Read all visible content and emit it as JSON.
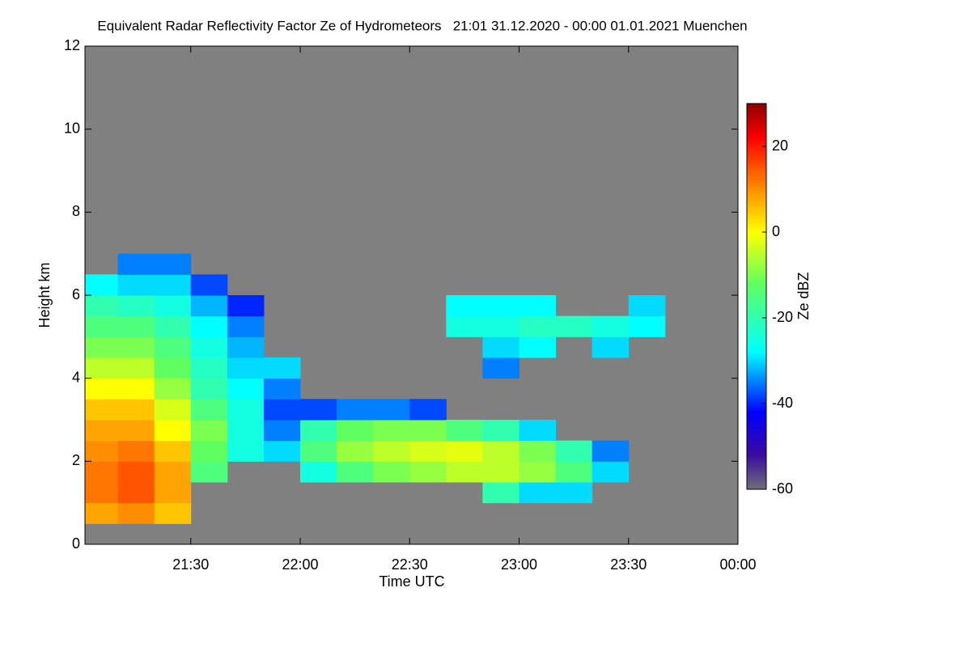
{
  "chart_data": {
    "type": "heatmap",
    "title": "Equivalent Radar Reflectivity Factor Ze of Hydrometeors   21:01 31.12.2020 - 00:00 01.01.2021 Muenchen",
    "x_label": "Time UTC",
    "y_label": "Height km",
    "colorbar_label": "Ze dBZ",
    "xlim": [
      1,
      180
    ],
    "xticks": [
      {
        "value": 30,
        "label": "21:30"
      },
      {
        "value": 60,
        "label": "22:00"
      },
      {
        "value": 90,
        "label": "22:30"
      },
      {
        "value": 120,
        "label": "23:00"
      },
      {
        "value": 150,
        "label": "23:30"
      },
      {
        "value": 180,
        "label": "00:00"
      }
    ],
    "ylim": [
      0,
      12
    ],
    "yticks": [
      0,
      2,
      4,
      6,
      8,
      10,
      12
    ],
    "clim": [
      -60,
      30
    ],
    "cticks": [
      -60,
      -40,
      -20,
      0,
      20
    ],
    "background": "#808080",
    "colormap": [
      {
        "value": -60,
        "color": "#6e6e78"
      },
      {
        "value": -52,
        "color": "#3a0ca0"
      },
      {
        "value": -42,
        "color": "#0000ff"
      },
      {
        "value": -28,
        "color": "#00ffff"
      },
      {
        "value": -12,
        "color": "#60ff60"
      },
      {
        "value": 0,
        "color": "#ffff00"
      },
      {
        "value": 14,
        "color": "#ff6000"
      },
      {
        "value": 22,
        "color": "#ff0000"
      },
      {
        "value": 30,
        "color": "#8b0000"
      }
    ],
    "x_bins": [
      1,
      10,
      20,
      30,
      40,
      50,
      60,
      70,
      80,
      90,
      100,
      110,
      120,
      130,
      140,
      150,
      160,
      170,
      180
    ],
    "y_bins": [
      0,
      0.5,
      1,
      1.5,
      2,
      2.5,
      3,
      3.5,
      4,
      4.5,
      5,
      5.5,
      6,
      6.5,
      7
    ],
    "values": [
      [
        null,
        8,
        12,
        12,
        10,
        8,
        5,
        0,
        -5,
        -10,
        -15,
        -20,
        -28,
        null
      ],
      [
        null,
        10,
        15,
        15,
        12,
        8,
        5,
        0,
        -5,
        -10,
        -15,
        -22,
        -30,
        -35
      ],
      [
        null,
        5,
        8,
        8,
        5,
        0,
        -3,
        -8,
        -12,
        -15,
        -20,
        -25,
        -30,
        -35
      ],
      [
        null,
        null,
        null,
        -15,
        -12,
        -10,
        -15,
        -20,
        -22,
        -25,
        -28,
        -32,
        -38,
        null
      ],
      [
        null,
        null,
        null,
        null,
        -25,
        -25,
        -25,
        -28,
        -30,
        -32,
        -35,
        -40,
        null,
        null
      ],
      [
        null,
        null,
        null,
        null,
        -30,
        -35,
        -38,
        -35,
        -30,
        null,
        null,
        null,
        null,
        null
      ],
      [
        null,
        null,
        null,
        -25,
        -15,
        -20,
        -38,
        null,
        null,
        null,
        null,
        null,
        null,
        null
      ],
      [
        null,
        null,
        null,
        -15,
        -8,
        -12,
        -35,
        null,
        null,
        null,
        null,
        null,
        null,
        null
      ],
      [
        null,
        null,
        null,
        -10,
        -5,
        -10,
        -35,
        null,
        null,
        null,
        null,
        null,
        null,
        null
      ],
      [
        null,
        null,
        null,
        -8,
        -3,
        -10,
        -38,
        null,
        null,
        null,
        null,
        null,
        null,
        null
      ],
      [
        null,
        null,
        null,
        -5,
        -2,
        -15,
        null,
        null,
        null,
        null,
        -25,
        -28,
        null,
        null
      ],
      [
        null,
        null,
        -20,
        -5,
        -5,
        -20,
        null,
        null,
        -35,
        -30,
        -25,
        -28,
        null,
        null
      ],
      [
        null,
        null,
        -30,
        -8,
        -10,
        -30,
        null,
        null,
        null,
        -28,
        -22,
        -28,
        null,
        null
      ],
      [
        null,
        null,
        -30,
        -15,
        -20,
        null,
        null,
        null,
        null,
        null,
        -22,
        null,
        null,
        null
      ],
      [
        null,
        null,
        null,
        -30,
        -35,
        null,
        null,
        null,
        null,
        -30,
        -25,
        null,
        null,
        null
      ],
      [
        null,
        null,
        null,
        null,
        null,
        null,
        null,
        null,
        null,
        null,
        -28,
        -30,
        null,
        null
      ],
      [
        null,
        null,
        null,
        null,
        null,
        null,
        null,
        null,
        null,
        null,
        null,
        null,
        null,
        null
      ],
      [
        null,
        null,
        null,
        null,
        null,
        null,
        null,
        null,
        null,
        null,
        null,
        null,
        null,
        null
      ]
    ]
  }
}
